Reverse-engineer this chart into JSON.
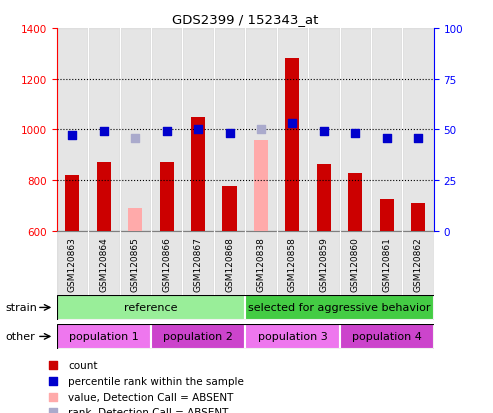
{
  "title": "GDS2399 / 152343_at",
  "samples": [
    "GSM120863",
    "GSM120864",
    "GSM120865",
    "GSM120866",
    "GSM120867",
    "GSM120868",
    "GSM120838",
    "GSM120858",
    "GSM120859",
    "GSM120860",
    "GSM120861",
    "GSM120862"
  ],
  "counts": [
    820,
    870,
    null,
    870,
    1050,
    775,
    null,
    1280,
    865,
    830,
    725,
    710
  ],
  "absent_counts": [
    null,
    null,
    690,
    null,
    null,
    null,
    960,
    null,
    null,
    null,
    null,
    null
  ],
  "percentile_ranks": [
    47,
    49,
    null,
    49,
    50,
    48,
    null,
    53,
    49,
    48,
    46,
    46
  ],
  "absent_ranks": [
    null,
    null,
    46,
    null,
    null,
    null,
    50,
    null,
    null,
    null,
    null,
    null
  ],
  "ylim_left": [
    600,
    1400
  ],
  "ylim_right": [
    0,
    100
  ],
  "count_color": "#cc0000",
  "absent_count_color": "#ffaaaa",
  "rank_color": "#0000cc",
  "absent_rank_color": "#aaaacc",
  "strain_groups": [
    {
      "label": "reference",
      "start": 0,
      "end": 6,
      "color": "#99ee99"
    },
    {
      "label": "selected for aggressive behavior",
      "start": 6,
      "end": 12,
      "color": "#44cc44"
    }
  ],
  "other_groups": [
    {
      "label": "population 1",
      "start": 0,
      "end": 3,
      "color": "#ee77ee"
    },
    {
      "label": "population 2",
      "start": 3,
      "end": 6,
      "color": "#cc44cc"
    },
    {
      "label": "population 3",
      "start": 6,
      "end": 9,
      "color": "#ee77ee"
    },
    {
      "label": "population 4",
      "start": 9,
      "end": 12,
      "color": "#cc44cc"
    }
  ],
  "col_bg": "#cccccc",
  "legend_items": [
    {
      "color": "#cc0000",
      "label": "count"
    },
    {
      "color": "#0000cc",
      "label": "percentile rank within the sample"
    },
    {
      "color": "#ffaaaa",
      "label": "value, Detection Call = ABSENT"
    },
    {
      "color": "#aaaacc",
      "label": "rank, Detection Call = ABSENT"
    }
  ]
}
